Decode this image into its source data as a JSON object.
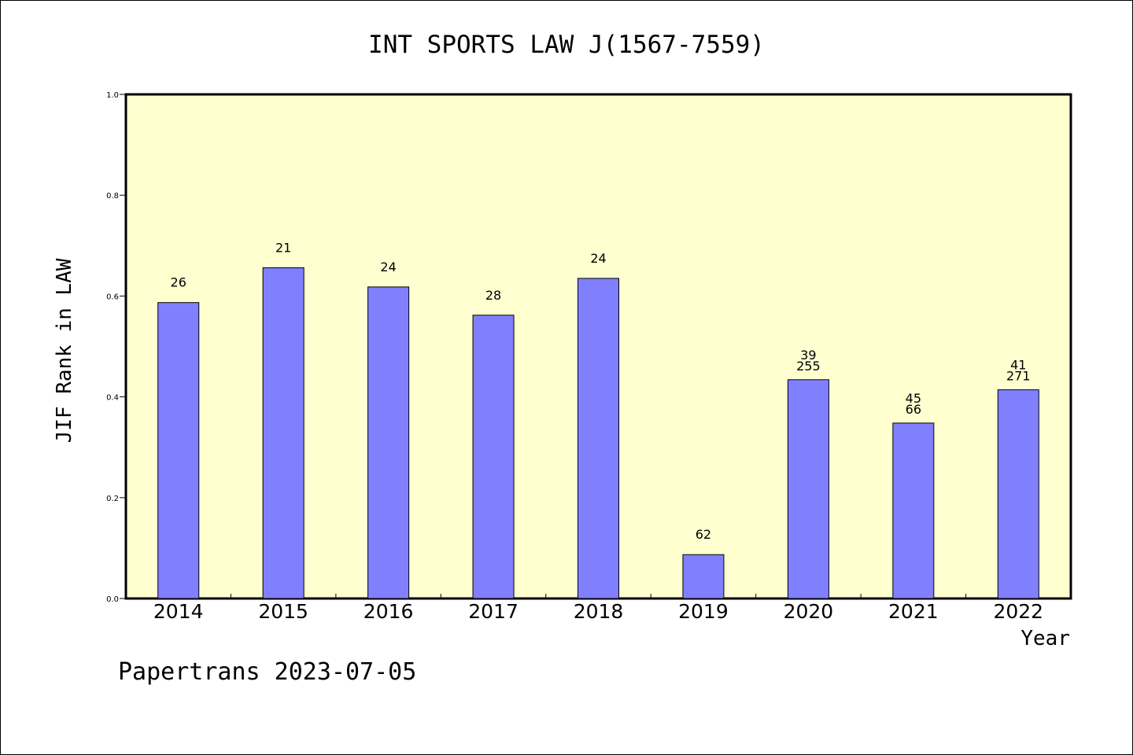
{
  "chart_data": {
    "type": "bar",
    "title": "INT SPORTS LAW J(1567-7559)",
    "ylabel": "JIF Rank in LAW",
    "xlabel": "Year",
    "ylim": [
      0,
      1.0
    ],
    "yticks": [
      "0.0",
      "0.2",
      "0.4",
      "0.6",
      "0.8",
      "1.0"
    ],
    "grid": false,
    "categories": [
      "2014",
      "2015",
      "2016",
      "2017",
      "2018",
      "2019",
      "2020",
      "2021",
      "2022"
    ],
    "values": [
      0.587,
      0.656,
      0.618,
      0.562,
      0.635,
      0.087,
      0.434,
      0.348,
      0.414
    ],
    "bar_labels": [
      [
        "26"
      ],
      [
        "21"
      ],
      [
        "24"
      ],
      [
        "28"
      ],
      [
        "24"
      ],
      [
        "62"
      ],
      [
        "39",
        "255"
      ],
      [
        "45",
        "66"
      ],
      [
        "41",
        "271"
      ]
    ],
    "colors": {
      "plot_bg": "#ffffd0",
      "bar": "#8080ff",
      "edge": "#000000"
    }
  },
  "footer": "Papertrans 2023-07-05"
}
